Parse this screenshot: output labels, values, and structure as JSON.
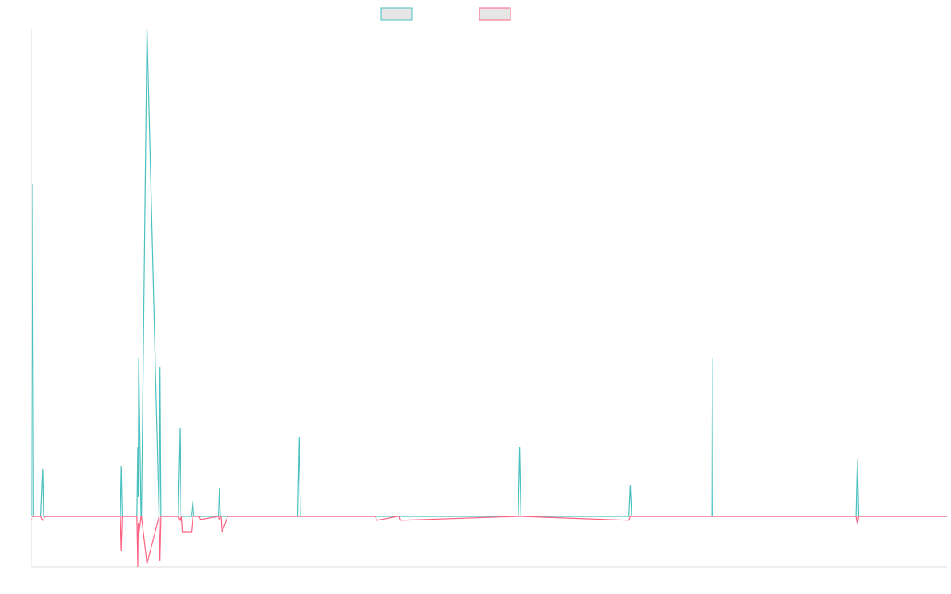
{
  "chart_data": {
    "type": "line",
    "title": "",
    "xlabel": "",
    "ylabel": "",
    "grid": false,
    "legend": "top-center",
    "xlim": [
      0,
      1000
    ],
    "ylim": [
      -8,
      77
    ],
    "x": [
      0,
      0.8,
      2,
      10,
      12,
      13,
      14,
      15.5,
      16,
      17,
      18,
      29,
      97,
      98,
      99,
      104.5,
      106,
      115,
      116,
      116.5,
      117,
      119.5,
      120,
      126,
      139,
      140,
      141,
      160,
      162,
      163,
      163.5,
      164,
      165,
      174.5,
      176,
      177,
      182.5,
      184,
      204,
      205,
      206,
      207,
      208,
      214,
      290.5,
      292,
      293.5,
      307,
      309,
      310.5,
      374,
      375.5,
      377,
      400,
      401.5,
      403,
      531.5,
      533,
      534.5,
      652.5,
      654,
      655.5,
      743,
      743.5,
      744,
      746,
      746.5,
      747,
      900.5,
      902,
      903.5,
      1000
    ],
    "series": [
      {
        "color": "#4bc0c0",
        "values": [
          0,
          52.5,
          0,
          0,
          7.5,
          0,
          0,
          0,
          0,
          0,
          0,
          0,
          0,
          8,
          0,
          0,
          0,
          0,
          11,
          3,
          25,
          0,
          0,
          77,
          0,
          23.5,
          0,
          0,
          14,
          0,
          0,
          0,
          0,
          0,
          2.5,
          0,
          0,
          0,
          0,
          4.5,
          0,
          0,
          0,
          0,
          0,
          12.5,
          0,
          0,
          0,
          0,
          0,
          0,
          0,
          0,
          0,
          0,
          0,
          11,
          0,
          0,
          5,
          0,
          0,
          25,
          0,
          0,
          0,
          0,
          0,
          9,
          0,
          0
        ]
      },
      {
        "color": "#ff6384",
        "values": [
          -0.5,
          0,
          0,
          0,
          -0.6,
          -0.6,
          0,
          0,
          0,
          0,
          0,
          0,
          0,
          -5.5,
          0,
          0,
          0,
          0,
          -8,
          -1,
          -3,
          0,
          0,
          -7.5,
          0,
          -7,
          0,
          0,
          -0.6,
          0,
          0,
          0,
          -2.5,
          -2.5,
          0,
          0,
          0,
          -0.5,
          0,
          -0.6,
          0,
          0,
          -2.5,
          0,
          0,
          0,
          0,
          0,
          0,
          0,
          0,
          0,
          -0.6,
          0,
          0,
          -0.6,
          0,
          0,
          0,
          -0.6,
          0,
          0,
          0,
          0,
          0,
          0,
          0,
          0,
          0,
          -1.2,
          0,
          0
        ]
      }
    ]
  }
}
